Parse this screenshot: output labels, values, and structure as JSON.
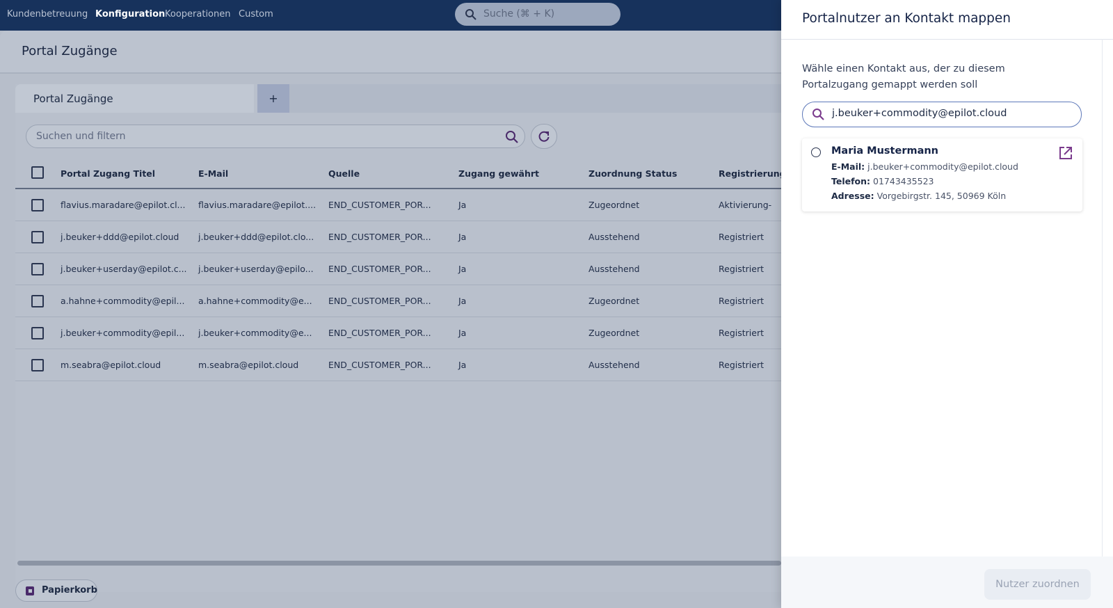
{
  "nav": {
    "items": [
      "Kundenbetreuung",
      "Konfiguration",
      "Kooperationen",
      "Custom"
    ],
    "search_placeholder": "Suche (⌘ + K)"
  },
  "page": {
    "title": "Portal Zugänge",
    "tab": "Portal Zugänge",
    "add_tab": "+",
    "filter_placeholder": "Suchen und filtern"
  },
  "table": {
    "columns": [
      "Portal Zugang Titel",
      "E-Mail",
      "Quelle",
      "Zugang gewährt",
      "Zuordnung Status",
      "Registrierung"
    ],
    "rows": [
      [
        "flavius.maradare@epilot.cl...",
        "flavius.maradare@epilot....",
        "END_CUSTOMER_POR...",
        "Ja",
        "Zugeordnet",
        "Aktivierung-"
      ],
      [
        "j.beuker+ddd@epilot.cloud",
        "j.beuker+ddd@epilot.clo...",
        "END_CUSTOMER_POR...",
        "Ja",
        "Ausstehend",
        "Registriert"
      ],
      [
        "j.beuker+userday@epilot.c...",
        "j.beuker+userday@epilo...",
        "END_CUSTOMER_POR...",
        "Ja",
        "Ausstehend",
        "Registriert"
      ],
      [
        "a.hahne+commodity@epil...",
        "a.hahne+commodity@e...",
        "END_CUSTOMER_POR...",
        "Ja",
        "Zugeordnet",
        "Registriert"
      ],
      [
        "j.beuker+commodity@epil...",
        "j.beuker+commodity@e...",
        "END_CUSTOMER_POR...",
        "Ja",
        "Zugeordnet",
        "Registriert"
      ],
      [
        "m.seabra@epilot.cloud",
        "m.seabra@epilot.cloud",
        "END_CUSTOMER_POR...",
        "Ja",
        "Ausstehend",
        "Registriert"
      ]
    ]
  },
  "footer": {
    "trash": "Papierkorb"
  },
  "drawer": {
    "title": "Portalnutzer an Kontakt mappen",
    "instruction": "Wähle einen Kontakt aus, der zu diesem Portalzugang gemappt werden soll",
    "search_value": "j.beuker+commodity@epilot.cloud",
    "result": {
      "name": "Maria Mustermann",
      "fields": [
        {
          "label": "E-Mail:",
          "value": "j.beuker+commodity@epilot.cloud"
        },
        {
          "label": "Telefon:",
          "value": "01743435523"
        },
        {
          "label": "Adresse:",
          "value": "Vorgebirgstr. 145, 50969 Köln"
        }
      ]
    },
    "submit": "Nutzer zuordnen"
  }
}
